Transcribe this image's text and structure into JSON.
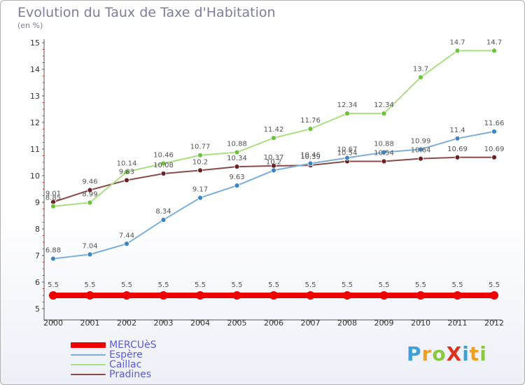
{
  "header": {
    "title": "Evolution du Taux de Taxe d'Habitation",
    "subtitle": "(en %)"
  },
  "logo": {
    "text": "ProXiti",
    "letters": [
      "P",
      "r",
      "o",
      "X",
      "i",
      "t",
      "i"
    ],
    "colors": [
      "#3fa0d8",
      "#f0a020",
      "#8ac840",
      "#e03020",
      "#3fa0d8",
      "#f0a020",
      "#8ac840"
    ]
  },
  "chart_data": {
    "type": "line",
    "title": "Evolution du Taux de Taxe d'Habitation",
    "subtitle": "(en %)",
    "xlabel": "",
    "ylabel": "",
    "x": [
      "2000",
      "2001",
      "2002",
      "2003",
      "2004",
      "2005",
      "2006",
      "2007",
      "2008",
      "2009",
      "2010",
      "2011",
      "2012"
    ],
    "ylim": [
      5,
      15
    ],
    "yticks": [
      "5",
      "6",
      "7",
      "8",
      "9",
      "10",
      "11",
      "12",
      "13",
      "14",
      "15"
    ],
    "grid": false,
    "legend_position": "bottom-left",
    "series": [
      {
        "name": "MERCUèS",
        "color": "#ee0000",
        "marker_color": "#ee0000",
        "values": [
          5.5,
          5.5,
          5.5,
          5.5,
          5.5,
          5.5,
          5.5,
          5.5,
          5.5,
          5.5,
          5.5,
          5.5,
          5.5
        ],
        "labels": [
          "5.5",
          "5.5",
          "5.5",
          "5.5",
          "5.5",
          "5.5",
          "5.5",
          "5.5",
          "5.5",
          "5.5",
          "5.5",
          "5.5",
          "5.5"
        ]
      },
      {
        "name": "Espère",
        "color": "#7baed8",
        "marker_color": "#3a85c6",
        "values": [
          6.88,
          7.04,
          7.44,
          8.34,
          9.17,
          9.63,
          10.2,
          10.46,
          10.67,
          10.88,
          10.99,
          11.4,
          11.66
        ],
        "labels": [
          "6.88",
          "7.04",
          "7.44",
          "8.34",
          "9.17",
          "9.63",
          "10.2",
          "10.46",
          "10.67",
          "10.88",
          "10.99",
          "11.4",
          "11.66"
        ]
      },
      {
        "name": "Caillac",
        "color": "#a8e080",
        "marker_color": "#6cc23a",
        "values": [
          8.85,
          8.99,
          10.14,
          10.46,
          10.77,
          10.88,
          11.42,
          11.76,
          12.34,
          12.34,
          13.7,
          14.7,
          14.7
        ],
        "labels": [
          "8.85",
          "8.99",
          "10.14",
          "10.46",
          "10.77",
          "10.88",
          "11.42",
          "11.76",
          "12.34",
          "12.34",
          "13.7",
          "14.7",
          "14.7"
        ]
      },
      {
        "name": "Pradines",
        "color": "#8b4a4a",
        "marker_color": "#6b2222",
        "values": [
          9.01,
          9.46,
          9.83,
          10.08,
          10.2,
          10.34,
          10.37,
          10.39,
          10.54,
          10.54,
          10.64,
          10.69,
          10.69
        ],
        "labels": [
          "9.01",
          "9.46",
          "9.83",
          "10.08",
          "10.2",
          "10.34",
          "10.37",
          "10.39",
          "10.54",
          "10.54",
          "10.64",
          "10.69",
          "10.69"
        ]
      }
    ]
  }
}
